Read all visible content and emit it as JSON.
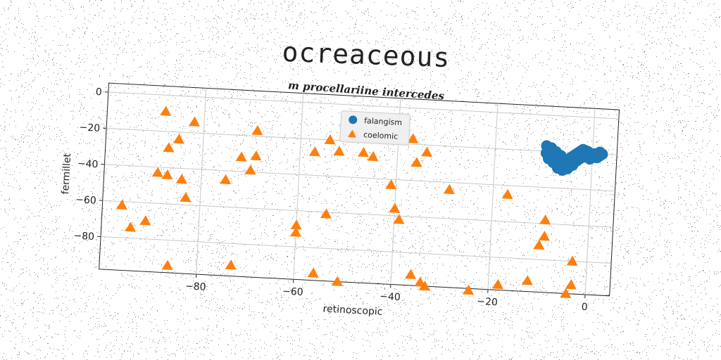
{
  "chart_data": {
    "type": "scatter",
    "title": "ocreaceous",
    "subtitle": "m procellariine intercedes",
    "xlabel": "retinoscopic",
    "ylabel": "fermillet",
    "xlim": [
      -100,
      5
    ],
    "ylim": [
      -98,
      5
    ],
    "xticks": [
      -80,
      -60,
      -40,
      -20,
      0
    ],
    "yticks": [
      0,
      -20,
      -40,
      -60,
      -80
    ],
    "grid": true,
    "legend": "top-center",
    "series": [
      {
        "name": "falangism",
        "marker": "circle",
        "color": "#1f77b4",
        "points": [
          [
            -9.5,
            -17
          ],
          [
            -9,
            -19
          ],
          [
            -8.5,
            -21
          ],
          [
            -8,
            -23
          ],
          [
            -7.5,
            -25
          ],
          [
            -7,
            -26
          ],
          [
            -6.5,
            -27
          ],
          [
            -6,
            -28
          ],
          [
            -5.5,
            -27
          ],
          [
            -5,
            -25
          ],
          [
            -4.5,
            -23
          ],
          [
            -4,
            -22
          ],
          [
            -3.5,
            -21
          ],
          [
            -3,
            -20
          ],
          [
            -2.5,
            -19
          ],
          [
            -2,
            -18
          ],
          [
            -1.5,
            -18.5
          ],
          [
            -1,
            -19
          ],
          [
            -0.5,
            -20
          ],
          [
            0,
            -21
          ],
          [
            0.5,
            -22
          ],
          [
            1,
            -22
          ],
          [
            1.5,
            -21
          ],
          [
            2,
            -20
          ],
          [
            -9,
            -24
          ],
          [
            -8,
            -26
          ],
          [
            -7,
            -29
          ],
          [
            -6,
            -30
          ],
          [
            -5,
            -29
          ],
          [
            -4,
            -27
          ],
          [
            -3,
            -24
          ],
          [
            -2,
            -22
          ],
          [
            -1,
            -21
          ],
          [
            -9.5,
            -21
          ],
          [
            -8.5,
            -18
          ],
          [
            -7.5,
            -20
          ],
          [
            -6.5,
            -22
          ],
          [
            -5.5,
            -24
          ],
          [
            -4.5,
            -26
          ],
          [
            -3.5,
            -25
          ],
          [
            -2.5,
            -23
          ],
          [
            -1.5,
            -22
          ],
          [
            -0.5,
            -23
          ],
          [
            0.5,
            -20
          ],
          [
            1.5,
            -19
          ]
        ]
      },
      {
        "name": "coelomic",
        "marker": "triangle",
        "color": "#ff7f0e",
        "points": [
          [
            -88,
            -9
          ],
          [
            -82,
            -14
          ],
          [
            -87,
            -29
          ],
          [
            -85,
            -24
          ],
          [
            -89,
            -43
          ],
          [
            -87,
            -44
          ],
          [
            -84,
            -46
          ],
          [
            -83,
            -56
          ],
          [
            -96,
            -62
          ],
          [
            -94,
            -74
          ],
          [
            -91,
            -70
          ],
          [
            -86,
            -94
          ],
          [
            -73,
            -92
          ],
          [
            -75,
            -45
          ],
          [
            -72,
            -32
          ],
          [
            -69,
            -31
          ],
          [
            -69,
            -17
          ],
          [
            -70,
            -39
          ],
          [
            -60,
            -68
          ],
          [
            -60,
            -72
          ],
          [
            -57,
            -27
          ],
          [
            -54,
            -20
          ],
          [
            -54,
            -61
          ],
          [
            -52,
            -26
          ],
          [
            -56,
            -94
          ],
          [
            -51,
            -98
          ],
          [
            -47,
            -26
          ],
          [
            -45,
            -28
          ],
          [
            -41,
            -43
          ],
          [
            -40,
            -56
          ],
          [
            -39,
            -62
          ],
          [
            -37,
            -17
          ],
          [
            -36,
            -30
          ],
          [
            -34,
            -24
          ],
          [
            -36,
            -92
          ],
          [
            -34,
            -96
          ],
          [
            -33,
            -98
          ],
          [
            -29,
            -44
          ],
          [
            -24,
            -99
          ],
          [
            -17,
            -45
          ],
          [
            -18,
            -95
          ],
          [
            -12,
            -92
          ],
          [
            -9,
            -58
          ],
          [
            -9,
            -67
          ],
          [
            -10,
            -72
          ],
          [
            -3,
            -80
          ],
          [
            -3,
            -93
          ],
          [
            -4,
            -98
          ]
        ]
      }
    ]
  }
}
